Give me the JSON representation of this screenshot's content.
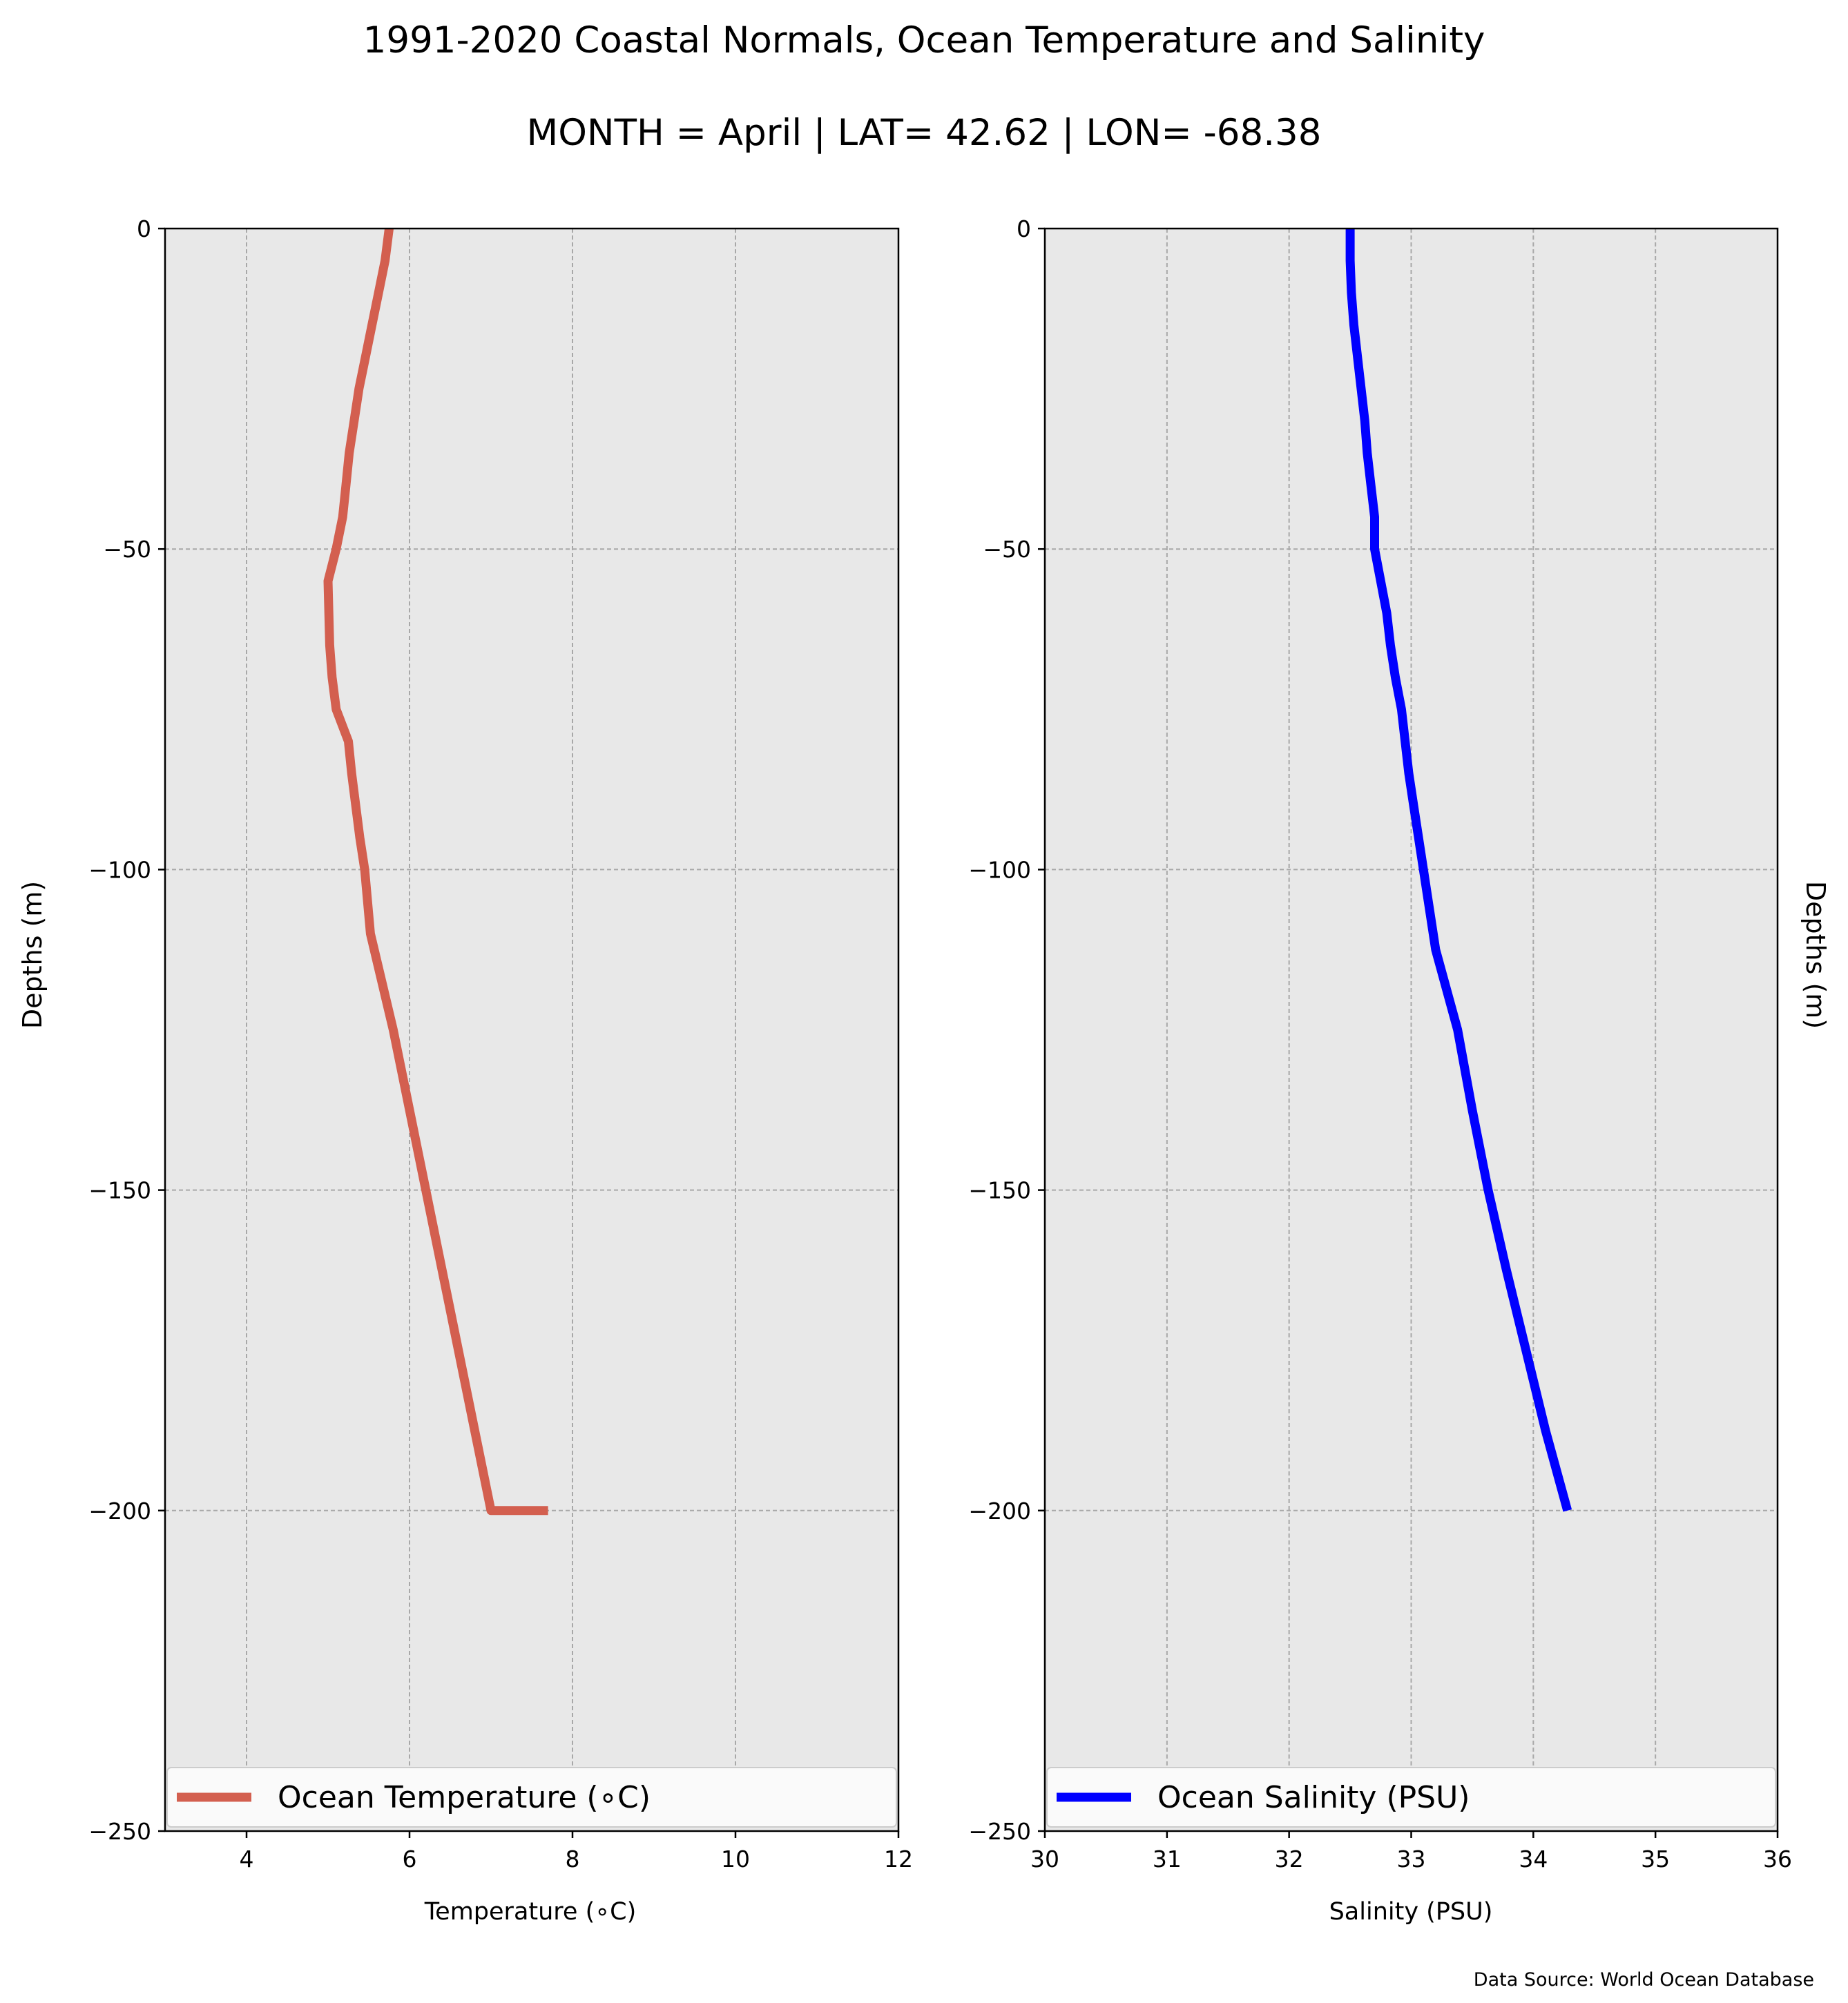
{
  "figure": {
    "title": "1991-2020 Coastal Normals, Ocean Temperature and Salinity",
    "subtitle": "MONTH = April | LAT= 42.62 | LON= -68.38",
    "source": "Data Source: World Ocean Database",
    "background": "#ffffff",
    "axes_background": "#e8e8e8",
    "grid_color": "#a8a8a8"
  },
  "chart_data": [
    {
      "type": "line",
      "series": [
        {
          "name": "Ocean Temperature (∘C)",
          "color": "#d35f4f",
          "x": [
            5.75,
            5.7,
            5.62,
            5.54,
            5.46,
            5.38,
            5.32,
            5.26,
            5.22,
            5.18,
            5.1,
            5.0,
            5.01,
            5.02,
            5.05,
            5.1,
            5.25,
            5.29,
            5.34,
            5.39,
            5.45,
            5.52,
            5.8,
            6.0,
            6.2,
            6.4,
            6.6,
            6.8,
            7.0,
            7.2,
            7.45,
            7.7
          ],
          "y": [
            0,
            -5,
            -10,
            -15,
            -20,
            -25,
            -30,
            -35,
            -40,
            -45,
            -50,
            -55,
            -60,
            -65,
            -70,
            -75,
            -80,
            -85,
            -90,
            -95,
            -100,
            -110,
            -125,
            -137.5,
            -150,
            -162.5,
            -175,
            -187.5,
            -200,
            -200,
            -200,
            -200
          ]
        }
      ],
      "xlabel": "Temperature (∘C)",
      "ylabel": "Depths (m)",
      "xlim": [
        3,
        12
      ],
      "ylim": [
        -250,
        0
      ],
      "xticks": [
        4,
        6,
        8,
        10,
        12
      ],
      "yticks": [
        0,
        -50,
        -100,
        -150,
        -200,
        -250
      ],
      "xtick_labels": [
        "4",
        "6",
        "8",
        "10",
        "12"
      ],
      "ytick_labels": [
        "0",
        "−50",
        "−100",
        "−150",
        "−200",
        "−250"
      ],
      "grid": true,
      "legend_position": "bottom"
    },
    {
      "type": "line",
      "series": [
        {
          "name": "Ocean Salinity (PSU)",
          "color": "#0000ff",
          "x": [
            32.5,
            32.5,
            32.51,
            32.53,
            32.56,
            32.59,
            32.62,
            32.64,
            32.67,
            32.7,
            32.7,
            32.75,
            32.8,
            32.83,
            32.87,
            32.92,
            32.95,
            32.98,
            33.02,
            33.06,
            33.1,
            33.2,
            33.38,
            33.5,
            33.63,
            33.78,
            33.94,
            34.1,
            34.28
          ],
          "y": [
            0,
            -5,
            -10,
            -15,
            -20,
            -25,
            -30,
            -35,
            -40,
            -45,
            -50,
            -55,
            -60,
            -65,
            -70,
            -75,
            -80,
            -85,
            -90,
            -95,
            -100,
            -112.5,
            -125,
            -137.5,
            -150,
            -162.5,
            -175,
            -187.5,
            -200
          ]
        }
      ],
      "xlabel": "Salinity (PSU)",
      "ylabel": "Depths (m)",
      "xlim": [
        30,
        36
      ],
      "ylim": [
        -250,
        0
      ],
      "xticks": [
        30,
        31,
        32,
        33,
        34,
        35,
        36
      ],
      "yticks": [
        0,
        -50,
        -100,
        -150,
        -200,
        -250
      ],
      "xtick_labels": [
        "30",
        "31",
        "32",
        "33",
        "34",
        "35",
        "36"
      ],
      "ytick_labels": [
        "0",
        "−50",
        "−100",
        "−150",
        "−200",
        "−250"
      ],
      "grid": true,
      "legend_position": "bottom"
    }
  ]
}
